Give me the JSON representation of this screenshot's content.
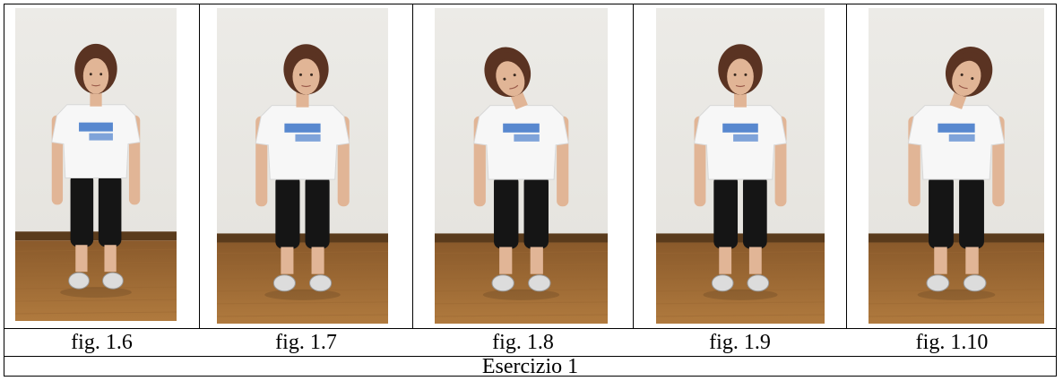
{
  "figures": [
    {
      "label": "fig. 1.6",
      "pose": "standing-front"
    },
    {
      "label": "fig. 1.7",
      "pose": "head-turned-left"
    },
    {
      "label": "fig. 1.8",
      "pose": "head-tilted-right"
    },
    {
      "label": "fig. 1.9",
      "pose": "standing-front"
    },
    {
      "label": "fig. 1.10",
      "pose": "head-tilted-left"
    }
  ],
  "caption": "Esercizio 1",
  "colors": {
    "wall": "#e6e4df",
    "floor": "#b07a3e",
    "floor_dark": "#5a3b1c",
    "shirt": "#f7f7f7",
    "pants": "#151515",
    "skin": "#e1b596",
    "hair": "#5a3322",
    "shoe": "#dcdcdc",
    "shirt_print": "#2f6bc4"
  }
}
